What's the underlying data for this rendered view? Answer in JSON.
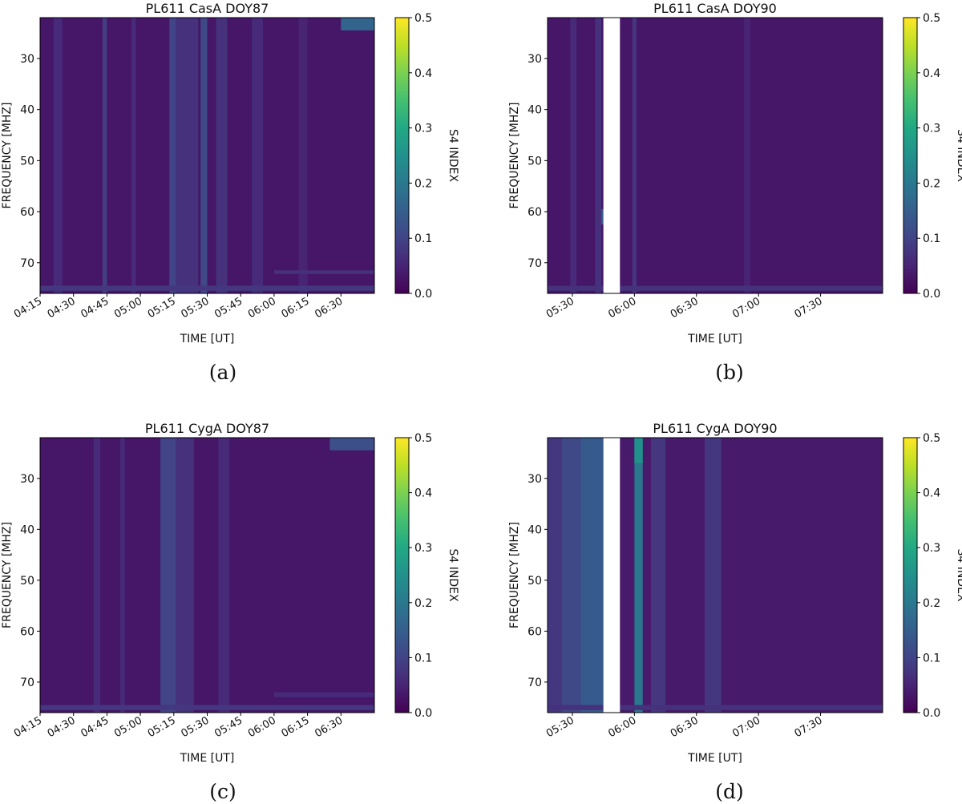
{
  "chart_data": [
    {
      "type": "heatmap",
      "panel_label": "(a)",
      "title": "PL611 CasA DOY87",
      "xlabel": "TIME [UT]",
      "ylabel": "FREQUENCY [MHZ]",
      "colorbar_label": "S4 INDEX",
      "colormap": "viridis",
      "clim": [
        0.0,
        0.5
      ],
      "colorbar_ticks": [
        "0.0",
        "0.1",
        "0.2",
        "0.3",
        "0.4",
        "0.5"
      ],
      "xlim": [
        "04:15",
        "06:45"
      ],
      "xticks": [
        "04:15",
        "04:30",
        "04:45",
        "05:00",
        "05:15",
        "05:30",
        "05:45",
        "06:00",
        "06:15",
        "06:30"
      ],
      "ylim": [
        76,
        22
      ],
      "yticks": [
        "30",
        "40",
        "50",
        "60",
        "70"
      ],
      "background_s4": 0.03,
      "vertical_bands": [
        {
          "start": "04:21",
          "end": "04:25",
          "s4": 0.06
        },
        {
          "start": "04:43",
          "end": "04:45",
          "s4": 0.09
        },
        {
          "start": "04:56",
          "end": "04:58",
          "s4": 0.06
        },
        {
          "start": "05:13",
          "end": "05:16",
          "s4": 0.1
        },
        {
          "start": "05:16",
          "end": "05:26",
          "s4": 0.07
        },
        {
          "start": "05:27",
          "end": "05:30",
          "s4": 0.11
        },
        {
          "start": "05:34",
          "end": "05:39",
          "s4": 0.07
        },
        {
          "start": "05:50",
          "end": "05:55",
          "s4": 0.06
        },
        {
          "start": "06:11",
          "end": "06:15",
          "s4": 0.05
        }
      ],
      "horizontal_bands": [
        {
          "fmin": 74.5,
          "fmax": 75.5,
          "start": "04:15",
          "end": "06:45",
          "s4": 0.08
        },
        {
          "fmin": 71.5,
          "fmax": 72.2,
          "start": "06:00",
          "end": "06:45",
          "s4": 0.07
        },
        {
          "fmin": 22,
          "fmax": 24.5,
          "start": "06:30",
          "end": "06:45",
          "s4": 0.16
        }
      ],
      "gap": null
    },
    {
      "type": "heatmap",
      "panel_label": "(b)",
      "title": "PL611 CasA DOY90",
      "xlabel": "TIME [UT]",
      "ylabel": "FREQUENCY [MHZ]",
      "colorbar_label": "S4 INDEX",
      "colormap": "viridis",
      "clim": [
        0.0,
        0.5
      ],
      "colorbar_ticks": [
        "0.0",
        "0.1",
        "0.2",
        "0.3",
        "0.4",
        "0.5"
      ],
      "xlim": [
        "05:18",
        "08:00"
      ],
      "xticks": [
        "05:30",
        "06:00",
        "06:30",
        "07:00",
        "07:30"
      ],
      "ylim": [
        76,
        22
      ],
      "yticks": [
        "30",
        "40",
        "50",
        "60",
        "70"
      ],
      "background_s4": 0.03,
      "vertical_bands": [
        {
          "start": "05:29",
          "end": "05:32",
          "s4": 0.06
        },
        {
          "start": "05:41",
          "end": "05:44",
          "s4": 0.07
        },
        {
          "start": "05:59",
          "end": "06:01",
          "s4": 0.08
        },
        {
          "start": "06:53",
          "end": "06:56",
          "s4": 0.05
        }
      ],
      "horizontal_bands": [
        {
          "fmin": 74.5,
          "fmax": 75.5,
          "start": "05:18",
          "end": "08:00",
          "s4": 0.07
        },
        {
          "fmin": 59.5,
          "fmax": 62.5,
          "start": "05:44",
          "end": "05:48",
          "s4": 0.14
        }
      ],
      "gap": {
        "start": "05:45",
        "end": "05:53"
      }
    },
    {
      "type": "heatmap",
      "panel_label": "(c)",
      "title": "PL611 CygA DOY87",
      "xlabel": "TIME [UT]",
      "ylabel": "FREQUENCY [MHZ]",
      "colorbar_label": "S4 INDEX",
      "colormap": "viridis",
      "clim": [
        0.0,
        0.5
      ],
      "colorbar_ticks": [
        "0.0",
        "0.1",
        "0.2",
        "0.3",
        "0.4",
        "0.5"
      ],
      "xlim": [
        "04:15",
        "06:45"
      ],
      "xticks": [
        "04:15",
        "04:30",
        "04:45",
        "05:00",
        "05:15",
        "05:30",
        "05:45",
        "06:00",
        "06:15",
        "06:30"
      ],
      "ylim": [
        76,
        22
      ],
      "yticks": [
        "30",
        "40",
        "50",
        "60",
        "70"
      ],
      "background_s4": 0.03,
      "vertical_bands": [
        {
          "start": "04:39",
          "end": "04:42",
          "s4": 0.06
        },
        {
          "start": "04:51",
          "end": "04:53",
          "s4": 0.06
        },
        {
          "start": "05:09",
          "end": "05:16",
          "s4": 0.1
        },
        {
          "start": "05:16",
          "end": "05:24",
          "s4": 0.07
        },
        {
          "start": "05:35",
          "end": "05:40",
          "s4": 0.06
        }
      ],
      "horizontal_bands": [
        {
          "fmin": 74.5,
          "fmax": 75.5,
          "start": "04:15",
          "end": "06:45",
          "s4": 0.08
        },
        {
          "fmin": 72,
          "fmax": 73,
          "start": "06:00",
          "end": "06:45",
          "s4": 0.06
        },
        {
          "fmin": 22,
          "fmax": 24.5,
          "start": "06:25",
          "end": "06:45",
          "s4": 0.12
        }
      ],
      "gap": null
    },
    {
      "type": "heatmap",
      "panel_label": "(d)",
      "title": "PL611 CygA DOY90",
      "xlabel": "TIME [UT]",
      "ylabel": "FREQUENCY [MHZ]",
      "colorbar_label": "S4 INDEX",
      "colormap": "viridis",
      "clim": [
        0.0,
        0.5
      ],
      "colorbar_ticks": [
        "0.0",
        "0.1",
        "0.2",
        "0.3",
        "0.4",
        "0.5"
      ],
      "xlim": [
        "05:18",
        "08:00"
      ],
      "xticks": [
        "05:30",
        "06:00",
        "06:30",
        "07:00",
        "07:30"
      ],
      "ylim": [
        76,
        22
      ],
      "yticks": [
        "30",
        "40",
        "50",
        "60",
        "70"
      ],
      "background_s4": 0.035,
      "vertical_bands": [
        {
          "start": "05:18",
          "end": "05:25",
          "s4": 0.08
        },
        {
          "start": "05:25",
          "end": "05:34",
          "s4": 0.11
        },
        {
          "start": "05:34",
          "end": "05:45",
          "s4": 0.14
        },
        {
          "start": "06:00",
          "end": "06:04",
          "s4": 0.2
        },
        {
          "start": "06:08",
          "end": "06:15",
          "s4": 0.08
        },
        {
          "start": "06:34",
          "end": "06:42",
          "s4": 0.08
        }
      ],
      "horizontal_bands": [
        {
          "fmin": 74.5,
          "fmax": 75.5,
          "start": "05:18",
          "end": "08:00",
          "s4": 0.07
        },
        {
          "fmin": 22,
          "fmax": 27,
          "start": "06:00",
          "end": "06:04",
          "s4": 0.25
        }
      ],
      "gap": {
        "start": "05:45",
        "end": "05:53"
      }
    }
  ]
}
